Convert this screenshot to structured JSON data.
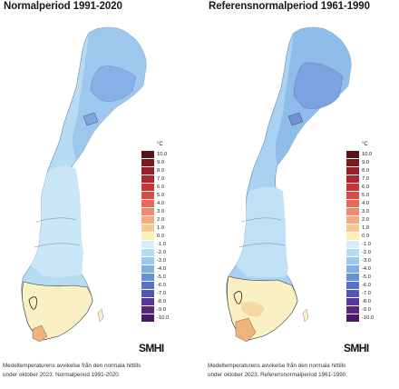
{
  "left": {
    "title": "Normalperiod 1991-2020",
    "caption_line1": "Medeltemperaturens avvikelse från den normala hittills",
    "caption_line2": "under oktober 2023. Normalperiod 1991-2020."
  },
  "right": {
    "title": "Referensnormalperiod 1961-1990",
    "caption_line1": "Medeltemperaturens avvikelse från den normala hittills",
    "caption_line2": "under oktober 2023. Referensnormalperiod 1961-1990."
  },
  "legend": {
    "unit": "°C",
    "entries": [
      {
        "label": "10.0",
        "color": "#5a1318"
      },
      {
        "label": "9.0",
        "color": "#7a1a20"
      },
      {
        "label": "8.0",
        "color": "#962028"
      },
      {
        "label": "7.0",
        "color": "#b0262e"
      },
      {
        "label": "6.0",
        "color": "#c93338"
      },
      {
        "label": "5.0",
        "color": "#dc4a48"
      },
      {
        "label": "4.0",
        "color": "#e8685c"
      },
      {
        "label": "3.0",
        "color": "#ef8a70"
      },
      {
        "label": "2.0",
        "color": "#f4aa7e"
      },
      {
        "label": "1.0",
        "color": "#f8c98f"
      },
      {
        "label": "0.0",
        "color": "#fbf0b8"
      },
      {
        "label": "-1.0",
        "color": "#d6eef8"
      },
      {
        "label": "-2.0",
        "color": "#b7dcf2"
      },
      {
        "label": "-3.0",
        "color": "#9ac7ec"
      },
      {
        "label": "-4.0",
        "color": "#7fafe3"
      },
      {
        "label": "-5.0",
        "color": "#6592d6"
      },
      {
        "label": "-6.0",
        "color": "#5574c4"
      },
      {
        "label": "-7.0",
        "color": "#5156b0"
      },
      {
        "label": "-8.0",
        "color": "#57399a"
      },
      {
        "label": "-9.0",
        "color": "#5a2580"
      },
      {
        "label": "-10.0",
        "color": "#4a1760"
      }
    ]
  },
  "logo": "SMHI",
  "colors": {
    "north_light": "#a5cdf0",
    "north_mid": "#8fbdea",
    "north_dark": "#7ea6df",
    "central": "#bfe0f5",
    "south_neutral": "#faf0c4",
    "south_warm": "#efb47e"
  }
}
